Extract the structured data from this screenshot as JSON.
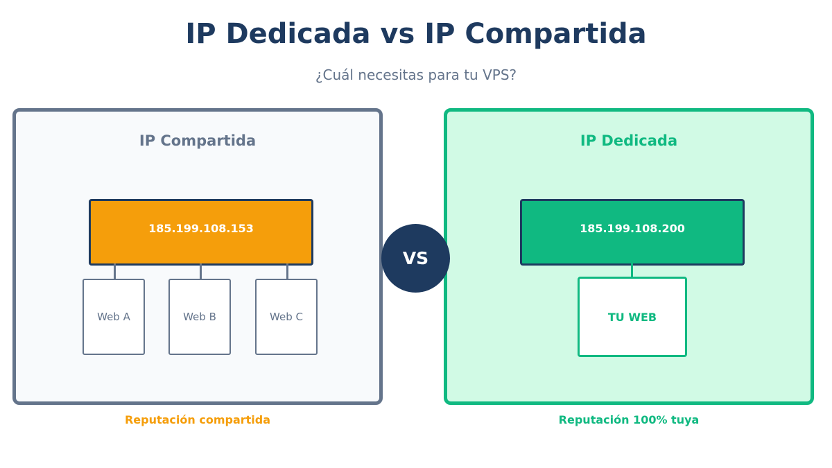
{
  "title": "IP Dedicada vs IP Compartida",
  "subtitle": "¿Cuál necesitas para tu VPS?",
  "shared": {
    "heading": "IP Compartida",
    "ip": "185.199.108.153",
    "sites": [
      "Web A",
      "Web B",
      "Web C"
    ],
    "caption": "Reputación compartida",
    "border_color": "#64748b",
    "ip_color": "#f59e0b"
  },
  "dedicated": {
    "heading": "IP Dedicada",
    "ip": "185.199.108.200",
    "site": "TU WEB",
    "caption": "Reputación 100% tuya",
    "border_color": "#10b981",
    "ip_color": "#10b981"
  },
  "vs_label": "VS"
}
